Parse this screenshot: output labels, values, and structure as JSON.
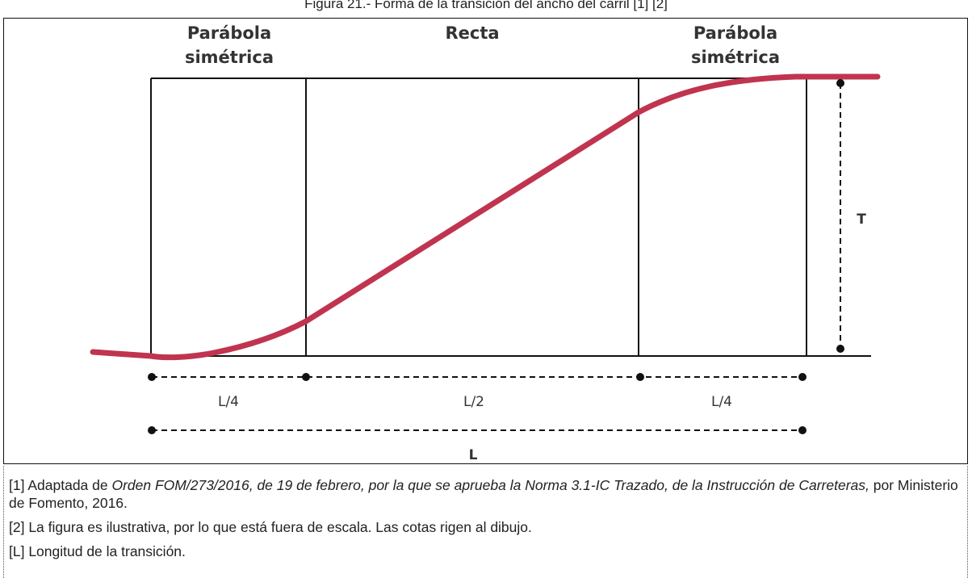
{
  "caption": "Figura 21.- Forma de la transición del ancho del carril [1] [2]",
  "figure": {
    "headings": {
      "left_line1": "Parábola",
      "left_line2": "simétrica",
      "middle": "Recta",
      "right_line1": "Parábola",
      "right_line2": "simétrica"
    },
    "dimensions": {
      "height_label": "T",
      "seg1_label": "L/4",
      "seg2_label": "L/2",
      "seg3_label": "L/4",
      "total_label": "L"
    },
    "colors": {
      "curve": "#c0344f",
      "lines": "#111111",
      "text": "#333333"
    }
  },
  "notes": {
    "n1_pre": "[1] Adaptada de ",
    "n1_italic": "Orden FOM/273/2016, de 19 de febrero, por la que se aprueba la Norma 3.1-IC Trazado, de la Instrucción de Carreteras,",
    "n1_post": " por Ministerio de Fomento, 2016.",
    "n2": "[2] La figura es ilustrativa, por lo que está fuera de escala. Las cotas rigen al dibujo.",
    "nL": "[L] Longitud de la transición."
  }
}
